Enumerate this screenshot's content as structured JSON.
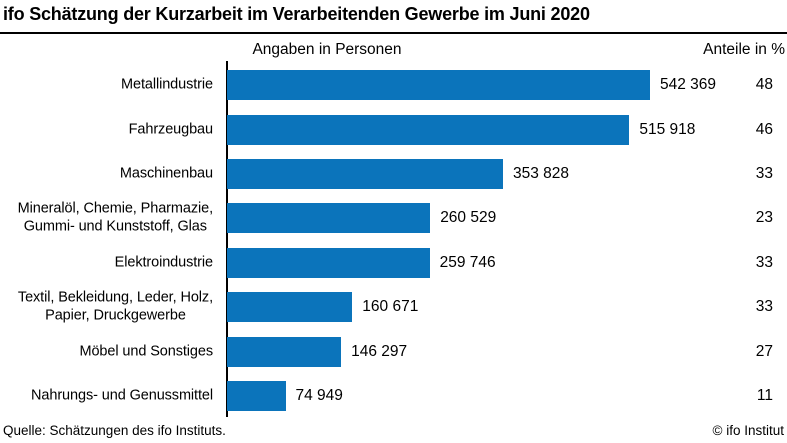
{
  "chart_data": {
    "type": "bar",
    "orientation": "horizontal",
    "title": "ifo Schätzung der Kurzarbeit im Verarbeitenden Gewerbe im Juni 2020",
    "categories": [
      "Metallindustrie",
      "Fahrzeugbau",
      "Maschinenbau",
      "Mineralöl, Chemie, Pharmazie,\nGummi- und Kunststoff, Glas",
      "Elektroindustrie",
      "Textil, Bekleidung, Leder, Holz,\nPapier, Druckgewerbe",
      "Möbel und Sonstiges",
      "Nahrungs- und Genussmittel"
    ],
    "series": [
      {
        "name": "Angaben in Personen",
        "values": [
          542369,
          515918,
          353828,
          260529,
          259746,
          160671,
          146297,
          74949
        ],
        "labels": [
          "542 369",
          "515 918",
          "353 828",
          "260 529",
          "259 746",
          "160 671",
          "146 297",
          "74 949"
        ]
      },
      {
        "name": "Anteile in %",
        "values": [
          48,
          46,
          33,
          23,
          33,
          33,
          27,
          11
        ]
      }
    ],
    "bar_color": "#0b74bb",
    "axis_color": "#000000",
    "grid": false,
    "legend": false
  },
  "footer": {
    "source": "Quelle: Schätzungen des ifo Instituts.",
    "copyright": "© ifo Institut"
  }
}
